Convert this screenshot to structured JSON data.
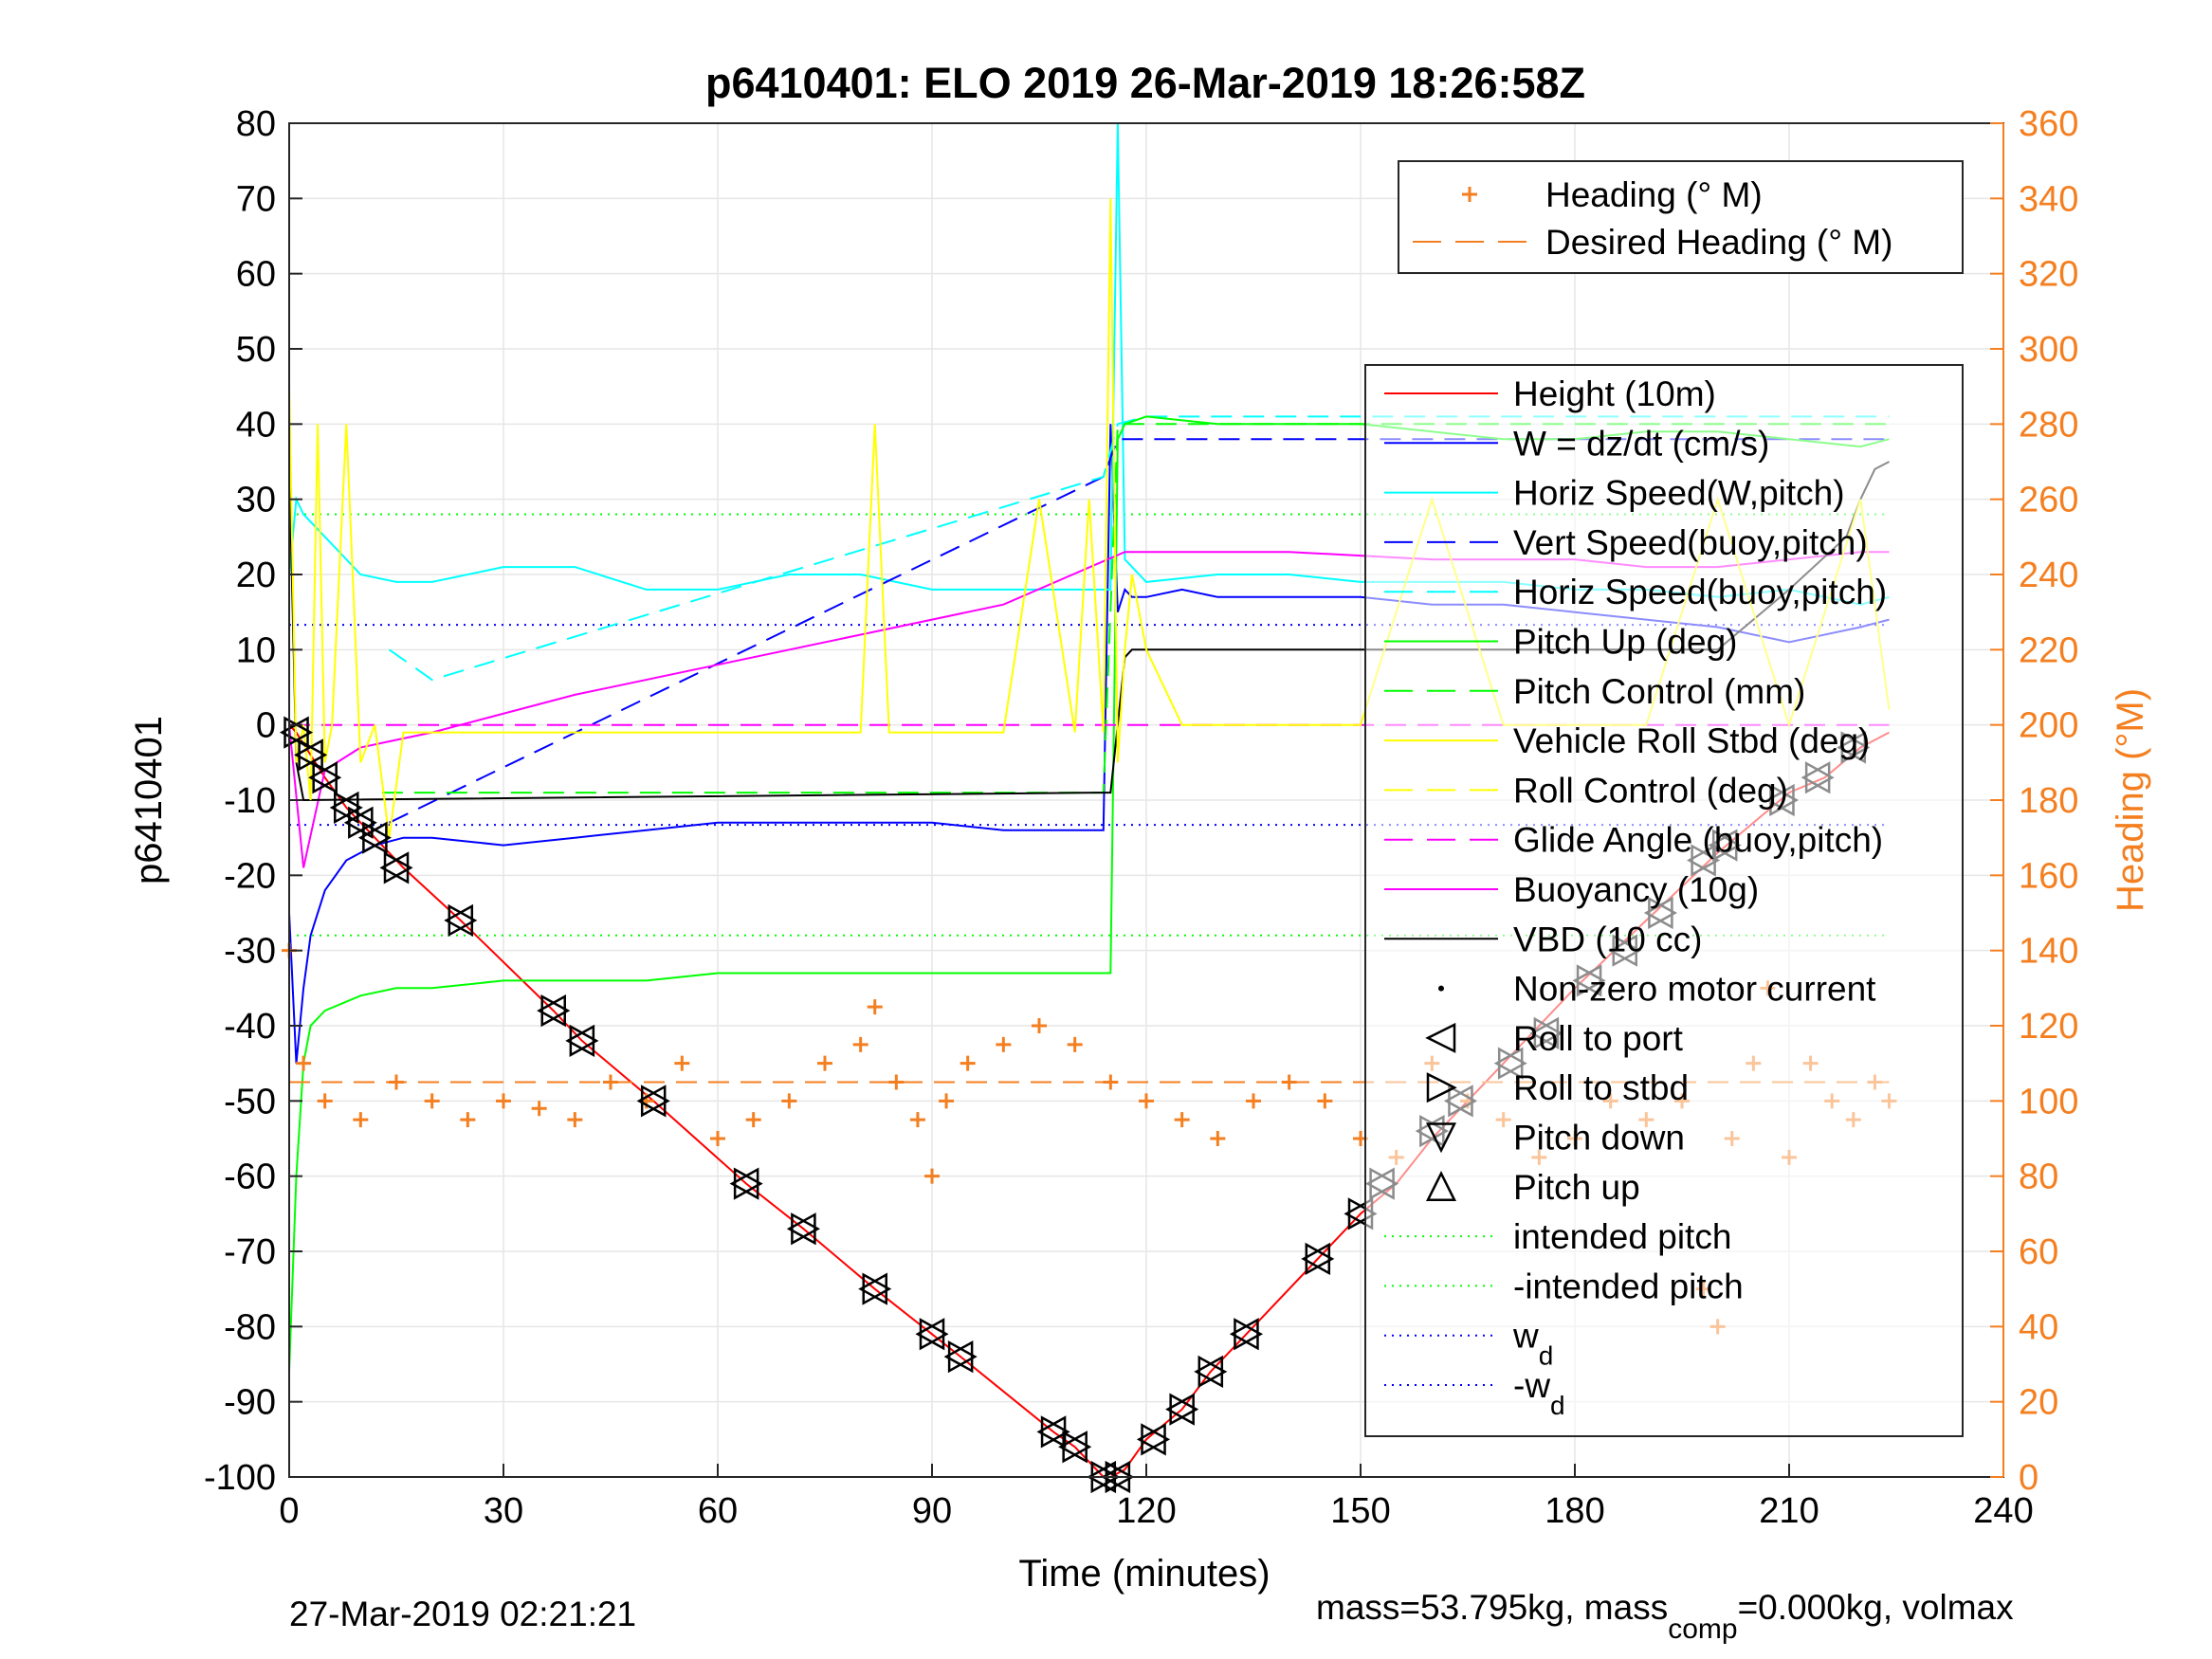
{
  "chart_data": {
    "type": "line",
    "title": "p6410401: ELO 2019 26-Mar-2019 18:26:58Z",
    "xlabel": "Time (minutes)",
    "ylabel": "p6410401",
    "ylabel_right": "Heading (°M)",
    "xlim": [
      0,
      240
    ],
    "ylim": [
      -100,
      80
    ],
    "ylim_right": [
      0,
      360
    ],
    "xticks": [
      "0",
      "30",
      "60",
      "90",
      "120",
      "150",
      "180",
      "210",
      "240"
    ],
    "yticks": [
      "80",
      "70",
      "60",
      "50",
      "40",
      "30",
      "20",
      "10",
      "0",
      "-10",
      "-20",
      "-30",
      "-40",
      "-50",
      "-60",
      "-70",
      "-80",
      "-90",
      "-100"
    ],
    "yticks_right": [
      "360",
      "340",
      "320",
      "300",
      "280",
      "260",
      "240",
      "220",
      "200",
      "180",
      "160",
      "140",
      "120",
      "100",
      "80",
      "60",
      "40",
      "20",
      "0"
    ],
    "grid": true,
    "legend_top": [
      {
        "label": "Heading (° M)",
        "color": "#f47f20",
        "style": "plus"
      },
      {
        "label": "Desired Heading (° M)",
        "color": "#f47f20",
        "style": "dash"
      }
    ],
    "legend_main": [
      {
        "label": "Height (10m)",
        "color": "#ff0000",
        "style": "solid"
      },
      {
        "label": "W = dz/dt (cm/s)",
        "color": "#0000ff",
        "style": "solid"
      },
      {
        "label": "Horiz Speed(W,pitch)",
        "color": "#00ffff",
        "style": "solid"
      },
      {
        "label": "Vert Speed(buoy,pitch)",
        "color": "#0000ff",
        "style": "dash"
      },
      {
        "label": "Horiz Speed(buoy,pitch)",
        "color": "#00ffff",
        "style": "dash"
      },
      {
        "label": "Pitch Up (deg)",
        "color": "#00ff00",
        "style": "solid"
      },
      {
        "label": "Pitch Control (mm)",
        "color": "#00ff00",
        "style": "dash"
      },
      {
        "label": "Vehicle Roll Stbd (deg)",
        "color": "#ffff00",
        "style": "solid"
      },
      {
        "label": "Roll Control (deg)",
        "color": "#ffff00",
        "style": "dash"
      },
      {
        "label": "Glide Angle (buoy,pitch)",
        "color": "#ff00ff",
        "style": "dash"
      },
      {
        "label": "Buoyancy (10g)",
        "color": "#ff00ff",
        "style": "solid"
      },
      {
        "label": "VBD (10 cc)",
        "color": "#000000",
        "style": "solid"
      },
      {
        "label": "Non-zero motor current",
        "color": "#000000",
        "style": "dot"
      },
      {
        "label": "Roll to port",
        "color": "#000000",
        "style": "tri-left"
      },
      {
        "label": "Roll to stbd",
        "color": "#000000",
        "style": "tri-right"
      },
      {
        "label": "Pitch down",
        "color": "#000000",
        "style": "tri-down"
      },
      {
        "label": "Pitch up",
        "color": "#000000",
        "style": "tri-up"
      },
      {
        "label": "intended pitch",
        "color": "#00ff00",
        "style": "dotted"
      },
      {
        "label": "-intended pitch",
        "color": "#00ff00",
        "style": "dotted"
      },
      {
        "label": "w",
        "sub": "d",
        "color": "#0000ff",
        "style": "dotted"
      },
      {
        "label": "-w",
        "sub": "d",
        "color": "#0000ff",
        "style": "dotted"
      }
    ],
    "series": [
      {
        "name": "Height (10m)",
        "x": [
          0,
          1,
          3,
          5,
          8,
          12,
          16,
          24,
          37,
          41,
          51,
          64,
          72,
          82,
          90,
          94,
          107,
          110,
          114,
          115,
          117,
          120,
          125,
          129,
          134,
          145,
          150,
          155,
          160,
          165,
          170,
          180,
          190,
          200,
          210,
          215,
          220,
          224
        ],
        "y": [
          0,
          -1,
          -4,
          -7,
          -11,
          -15,
          -19,
          -26,
          -38,
          -42,
          -50,
          -61,
          -67,
          -75,
          -81,
          -84,
          -94,
          -96,
          -100,
          -100,
          -99,
          -95,
          -91,
          -86,
          -81,
          -70,
          -65,
          -61,
          -55,
          -50,
          -45,
          -35,
          -26,
          -17,
          -9,
          -7,
          -3,
          -1
        ]
      },
      {
        "name": "W = dz/dt (cm/s)",
        "x": [
          0,
          1,
          2,
          3,
          5,
          8,
          12,
          16,
          20,
          30,
          40,
          50,
          60,
          70,
          80,
          90,
          100,
          110,
          114,
          115,
          116,
          117,
          118,
          120,
          125,
          130,
          140,
          150,
          160,
          170,
          180,
          190,
          200,
          210,
          220,
          224
        ],
        "y": [
          -25,
          -45,
          -35,
          -28,
          -22,
          -18,
          -16,
          -15,
          -15,
          -16,
          -15,
          -14,
          -13,
          -13,
          -13,
          -13,
          -14,
          -14,
          -14,
          40,
          15,
          18,
          17,
          17,
          18,
          17,
          17,
          17,
          16,
          16,
          15,
          14,
          13,
          11,
          13,
          14
        ]
      },
      {
        "name": "Horiz Speed(W,pitch)",
        "x": [
          0,
          1,
          2,
          5,
          8,
          10,
          15,
          20,
          30,
          40,
          50,
          60,
          70,
          80,
          90,
          100,
          110,
          114,
          115,
          116,
          117,
          120,
          130,
          140,
          150,
          160,
          170,
          180,
          190,
          200,
          210,
          220,
          224
        ],
        "y": [
          20,
          30,
          28,
          25,
          22,
          20,
          19,
          19,
          21,
          21,
          18,
          18,
          20,
          20,
          18,
          18,
          18,
          18,
          18,
          80,
          22,
          19,
          20,
          20,
          19,
          19,
          19,
          18,
          18,
          17,
          18,
          16,
          17
        ]
      },
      {
        "name": "Vert Speed(buoy,pitch)",
        "x": [
          14,
          114,
          116,
          120,
          224
        ],
        "y": [
          -13,
          33,
          38,
          38,
          38
        ]
      },
      {
        "name": "Horiz Speed(buoy,pitch)",
        "x": [
          14,
          20,
          114,
          116,
          120,
          224
        ],
        "y": [
          10,
          6,
          33,
          40,
          41,
          41
        ]
      },
      {
        "name": "Pitch Up (deg)",
        "x": [
          0,
          1,
          2,
          3,
          5,
          10,
          15,
          20,
          30,
          40,
          50,
          60,
          70,
          80,
          90,
          100,
          110,
          114,
          115,
          116,
          117,
          120,
          130,
          140,
          150,
          160,
          170,
          180,
          190,
          200,
          210,
          220,
          224
        ],
        "y": [
          -86,
          -60,
          -45,
          -40,
          -38,
          -36,
          -35,
          -35,
          -34,
          -34,
          -34,
          -33,
          -33,
          -33,
          -33,
          -33,
          -33,
          -33,
          -33,
          38,
          40,
          41,
          40,
          40,
          40,
          39,
          38,
          38,
          39,
          39,
          38,
          37,
          38
        ]
      },
      {
        "name": "Pitch Control (mm)",
        "x": [
          13,
          114,
          116,
          224
        ],
        "y": [
          -9,
          -9,
          40,
          40
        ]
      },
      {
        "name": "Glide Angle (buoy,pitch)",
        "x": [
          0,
          224
        ],
        "y": [
          0,
          0
        ]
      },
      {
        "name": "Buoyancy (10g)",
        "x": [
          0,
          2,
          5,
          10,
          15,
          20,
          40,
          60,
          80,
          100,
          117,
          120,
          140,
          160,
          180,
          190,
          200,
          210,
          220,
          224
        ],
        "y": [
          0,
          -19,
          -6,
          -3,
          -2,
          -1,
          4,
          8,
          12,
          16,
          23,
          23,
          23,
          22,
          22,
          21,
          21,
          22,
          23,
          23
        ]
      },
      {
        "name": "VBD (10 cc)",
        "x": [
          0,
          1,
          2,
          114,
          115,
          117,
          118,
          120,
          140,
          160,
          180,
          200,
          210,
          218,
          220,
          222,
          224
        ],
        "y": [
          35,
          -5,
          -10,
          -9,
          -9,
          9,
          10,
          10,
          10,
          10,
          10,
          10,
          18,
          25,
          30,
          34,
          35
        ]
      },
      {
        "name": "Heading (° M)",
        "axis": "right",
        "x": [
          0,
          2,
          5,
          10,
          15,
          20,
          25,
          30,
          35,
          40,
          45,
          50,
          55,
          60,
          65,
          70,
          75,
          80,
          82,
          85,
          88,
          90,
          92,
          95,
          100,
          105,
          110,
          115,
          120,
          125,
          130,
          135,
          140,
          145,
          150,
          155,
          160,
          165,
          170,
          175,
          180,
          185,
          190,
          195,
          198,
          200,
          202,
          205,
          207,
          210,
          213,
          216,
          219,
          222,
          224
        ],
        "y": [
          140,
          110,
          100,
          95,
          105,
          100,
          95,
          100,
          98,
          95,
          105,
          100,
          110,
          90,
          95,
          100,
          110,
          115,
          125,
          105,
          95,
          80,
          100,
          110,
          115,
          120,
          115,
          105,
          100,
          95,
          90,
          100,
          105,
          100,
          90,
          85,
          110,
          100,
          95,
          85,
          90,
          100,
          95,
          100,
          50,
          40,
          90,
          110,
          130,
          85,
          110,
          100,
          95,
          105,
          100
        ]
      },
      {
        "name": "Desired Heading (° M)",
        "axis": "right",
        "x": [
          0,
          224
        ],
        "y": [
          105,
          105
        ]
      },
      {
        "name": "Vehicle Roll Stbd (deg)",
        "x": [
          0,
          1,
          2,
          3,
          4,
          5,
          6,
          8,
          10,
          12,
          14,
          16,
          20,
          25,
          30,
          40,
          50,
          60,
          70,
          80,
          82,
          84,
          90,
          100,
          105,
          110,
          112,
          114,
          115,
          116,
          117,
          118,
          120,
          125,
          130,
          140,
          150,
          160,
          170,
          180,
          190,
          200,
          210,
          220,
          224
        ],
        "y": [
          45,
          -5,
          0,
          -10,
          40,
          -5,
          0,
          40,
          -5,
          0,
          -15,
          -1,
          -1,
          -1,
          -1,
          -1,
          -1,
          -1,
          -1,
          -1,
          40,
          -1,
          -1,
          -1,
          30,
          -1,
          30,
          -1,
          70,
          -5,
          10,
          20,
          10,
          0,
          0,
          0,
          0,
          30,
          0,
          0,
          0,
          30,
          0,
          30,
          2
        ]
      }
    ],
    "hlines": [
      {
        "name": "intended pitch",
        "y": 28,
        "color": "#00ff00"
      },
      {
        "name": "-intended pitch",
        "y": -28,
        "color": "#00ff00"
      },
      {
        "name": "w_d",
        "y": 13.3,
        "color": "#0000ff"
      },
      {
        "name": "-w_d",
        "y": -13.3,
        "color": "#0000ff"
      }
    ],
    "markers": {
      "x": [
        1,
        3,
        5,
        8,
        10,
        12,
        15,
        24,
        37,
        41,
        51,
        64,
        72,
        82,
        90,
        94,
        107,
        110,
        114,
        116,
        121,
        125,
        129,
        134,
        144,
        150,
        153,
        160,
        164,
        171,
        176,
        182,
        187,
        192,
        198,
        201,
        209,
        214,
        219
      ],
      "y": [
        -1,
        -4,
        -7,
        -11,
        -13,
        -15,
        -19,
        -26,
        -38,
        -42,
        -50,
        -61,
        -67,
        -75,
        -81,
        -84,
        -94,
        -96,
        -100,
        -100,
        -95,
        -91,
        -86,
        -81,
        -71,
        -65,
        -61,
        -54,
        -50,
        -45,
        -41,
        -34,
        -30,
        -25,
        -18,
        -16,
        -10,
        -7,
        -3
      ]
    }
  },
  "footer": {
    "left": "27-Mar-2019 02:21:21",
    "right_prefix": "mass=53.795kg, mass",
    "right_sub": "comp",
    "right_suffix": "=0.000kg, volmax"
  }
}
